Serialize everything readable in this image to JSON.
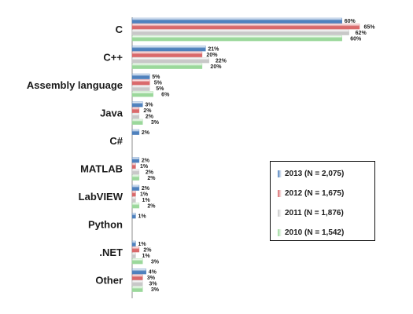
{
  "chart_data": {
    "type": "bar",
    "orientation": "horizontal",
    "categories": [
      "C",
      "C++",
      "Assembly language",
      "Java",
      "C#",
      "MATLAB",
      "LabVIEW",
      "Python",
      ".NET",
      "Other"
    ],
    "series": [
      {
        "name": "2013 (N = 2,075)",
        "color": "#4f81bd",
        "values": [
          60,
          21,
          5,
          3,
          2,
          2,
          2,
          1,
          1,
          4
        ]
      },
      {
        "name": "2012 (N = 1,675)",
        "color": "#d9696b",
        "values": [
          65,
          20,
          5,
          2,
          null,
          1,
          1,
          null,
          2,
          3
        ]
      },
      {
        "name": "2011 (N = 1,876)",
        "color": "#c8c8c8",
        "values": [
          62,
          22,
          5,
          2,
          null,
          2,
          1,
          null,
          1,
          3
        ]
      },
      {
        "name": "2010 (N = 1,542)",
        "color": "#9bd89b",
        "values": [
          60,
          20,
          6,
          3,
          null,
          2,
          2,
          null,
          3,
          3
        ]
      }
    ],
    "value_suffix": "%",
    "xlim": [
      0,
      65
    ],
    "grid": false,
    "legend_position": "bottom-right"
  }
}
